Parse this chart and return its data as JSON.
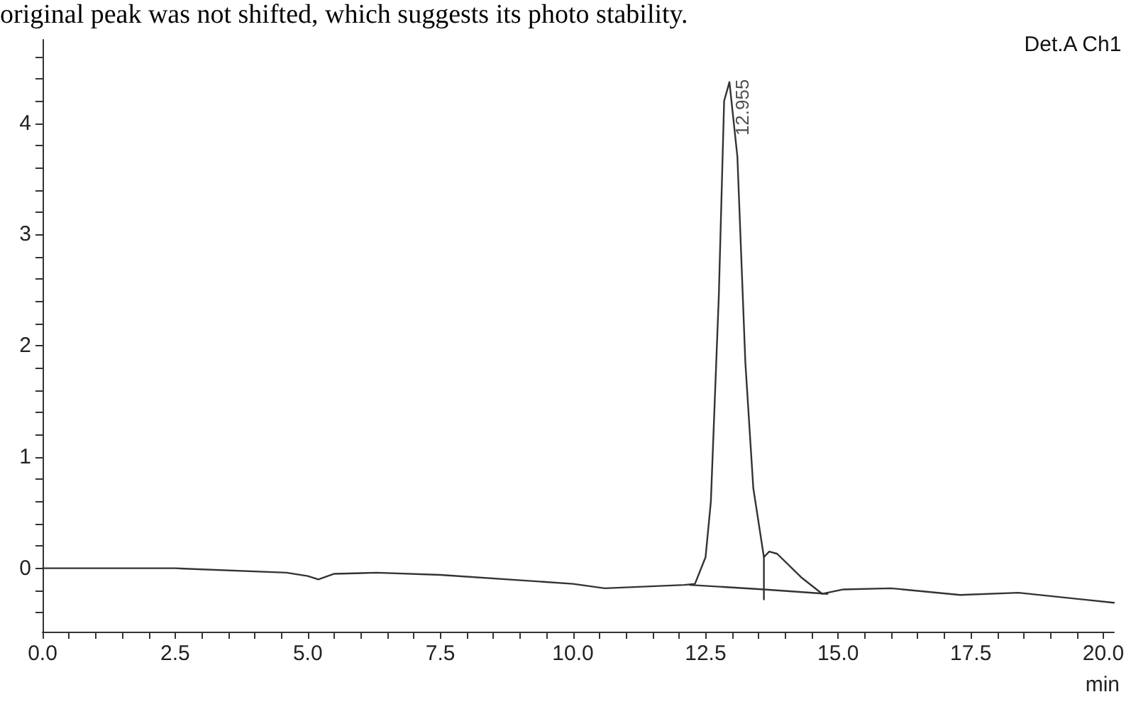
{
  "chart_data": {
    "type": "line",
    "xlabel": "min",
    "annotations": [
      "original peak was not shifted, which suggests its photo stability.",
      "Det.A Ch1",
      {
        "text": "12.955",
        "x": 12.955,
        "y": 4.37
      }
    ],
    "series": [
      {
        "color": "#333333",
        "x": [
          0,
          2.5,
          4.6,
          5.0,
          5.2,
          5.5,
          6.3,
          7.5,
          10.0,
          10.6,
          12.1,
          12.3,
          12.5,
          12.6,
          12.75,
          12.85,
          12.95,
          13.1,
          13.25,
          13.4,
          13.6,
          13.7,
          13.85,
          14.3,
          14.7,
          15.1,
          16.0,
          17.3,
          18.4,
          20.2
        ],
        "values": [
          0,
          0,
          -0.04,
          -0.07,
          -0.1,
          -0.05,
          -0.04,
          -0.06,
          -0.14,
          -0.18,
          -0.15,
          -0.14,
          0.1,
          0.6,
          2.45,
          4.2,
          4.37,
          3.7,
          1.85,
          0.72,
          0.1,
          0.15,
          0.13,
          -0.08,
          -0.23,
          -0.19,
          -0.18,
          -0.24,
          -0.22,
          -0.31
        ]
      },
      {
        "color": "#333333",
        "x": [
          12.2,
          13.6,
          14.8
        ],
        "values": [
          -0.15,
          -0.19,
          -0.23
        ]
      },
      {
        "color": "#333333",
        "x": [
          13.6,
          13.6
        ],
        "values": [
          -0.28,
          0.1
        ]
      }
    ],
    "xlim": [
      0,
      20.2
    ],
    "xticks": [
      {
        "value": 0,
        "label": "0.0"
      },
      {
        "value": 0.5,
        "label": null
      },
      {
        "value": 1,
        "label": null
      },
      {
        "value": 1.5,
        "label": null
      },
      {
        "value": 2,
        "label": null
      },
      {
        "value": 2.5,
        "label": "2.5"
      },
      {
        "value": 3,
        "label": null
      },
      {
        "value": 3.5,
        "label": null
      },
      {
        "value": 4,
        "label": null
      },
      {
        "value": 4.5,
        "label": null
      },
      {
        "value": 5,
        "label": "5.0"
      },
      {
        "value": 5.5,
        "label": null
      },
      {
        "value": 6,
        "label": null
      },
      {
        "value": 6.5,
        "label": null
      },
      {
        "value": 7,
        "label": null
      },
      {
        "value": 7.5,
        "label": "7.5"
      },
      {
        "value": 8,
        "label": null
      },
      {
        "value": 8.5,
        "label": null
      },
      {
        "value": 9,
        "label": null
      },
      {
        "value": 9.5,
        "label": null
      },
      {
        "value": 10,
        "label": "10.0"
      },
      {
        "value": 10.5,
        "label": null
      },
      {
        "value": 11,
        "label": null
      },
      {
        "value": 11.5,
        "label": null
      },
      {
        "value": 12,
        "label": null
      },
      {
        "value": 12.5,
        "label": "12.5"
      },
      {
        "value": 13,
        "label": null
      },
      {
        "value": 13.5,
        "label": null
      },
      {
        "value": 14,
        "label": null
      },
      {
        "value": 14.5,
        "label": null
      },
      {
        "value": 15,
        "label": "15.0"
      },
      {
        "value": 15.5,
        "label": null
      },
      {
        "value": 16,
        "label": null
      },
      {
        "value": 16.5,
        "label": null
      },
      {
        "value": 17,
        "label": null
      },
      {
        "value": 17.5,
        "label": "17.5"
      },
      {
        "value": 18,
        "label": null
      },
      {
        "value": 18.5,
        "label": null
      },
      {
        "value": 19,
        "label": null
      },
      {
        "value": 19.5,
        "label": null
      },
      {
        "value": 20,
        "label": "20.0"
      }
    ],
    "ylim": [
      -0.57,
      4.75
    ],
    "yticks": [
      {
        "value": -0.4,
        "label": null
      },
      {
        "value": -0.2,
        "label": null
      },
      0,
      {
        "value": 0.2,
        "label": null
      },
      {
        "value": 0.4,
        "label": null
      },
      {
        "value": 0.6,
        "label": null
      },
      {
        "value": 0.8,
        "label": null
      },
      1,
      {
        "value": 1.2,
        "label": null
      },
      {
        "value": 1.4,
        "label": null
      },
      {
        "value": 1.6,
        "label": null
      },
      {
        "value": 1.8,
        "label": null
      },
      2,
      {
        "value": 2.2,
        "label": null
      },
      {
        "value": 2.4,
        "label": null
      },
      {
        "value": 2.6,
        "label": null
      },
      {
        "value": 2.8,
        "label": null
      },
      3,
      {
        "value": 3.2,
        "label": null
      },
      {
        "value": 3.4,
        "label": null
      },
      {
        "value": 3.6,
        "label": null
      },
      {
        "value": 3.8,
        "label": null
      },
      4,
      {
        "value": 4.2,
        "label": null
      },
      {
        "value": 4.4,
        "label": null
      },
      {
        "value": 4.6,
        "label": null
      }
    ],
    "grid": false,
    "marker": "none",
    "line_style": "solid"
  }
}
